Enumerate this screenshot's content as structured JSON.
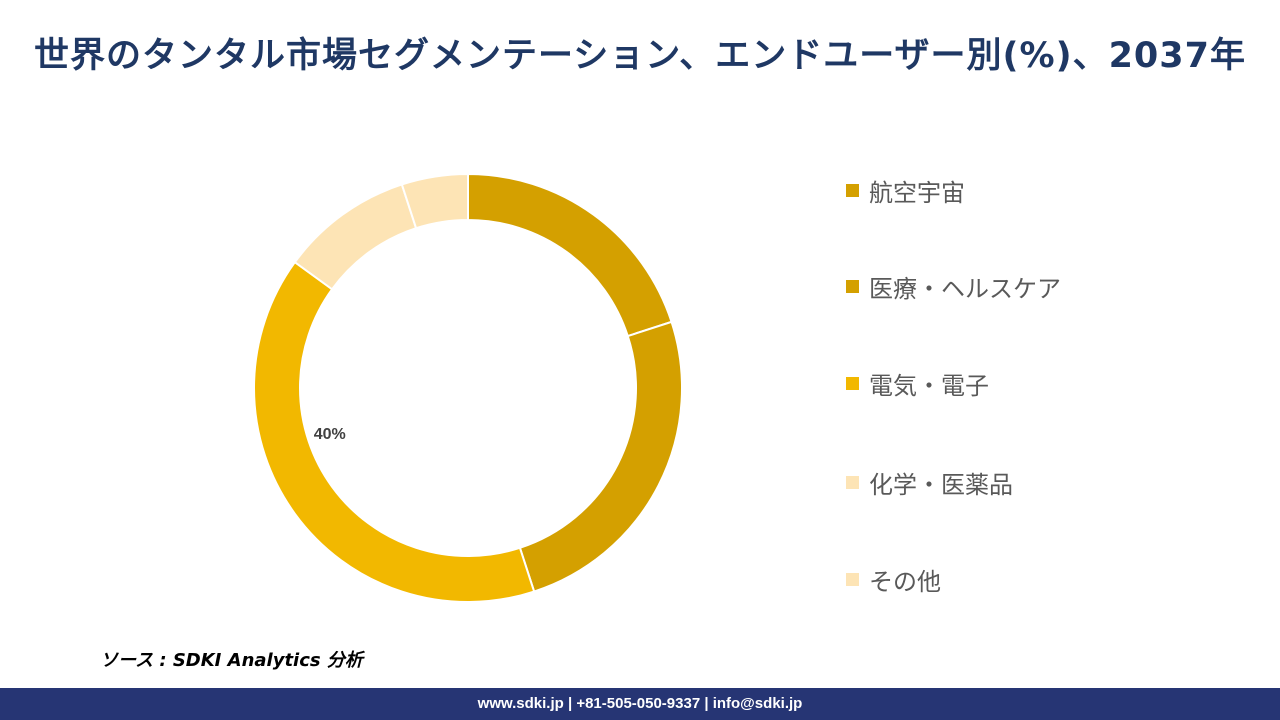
{
  "title": "世界のタンタル市場セグメンテーション、エンドユーザー別(%)、2037年",
  "chart_data": {
    "type": "donut",
    "title": "世界のタンタル市場セグメンテーション、エンドユーザー別(%)、2037年",
    "series": [
      {
        "name": "航空宇宙",
        "value": 20,
        "color": "#d4a000"
      },
      {
        "name": "医療・ヘルスケア",
        "value": 25,
        "color": "#d4a000"
      },
      {
        "name": "電気・電子",
        "value": 40,
        "color": "#f2b800",
        "label": "40%"
      },
      {
        "name": "化学・医薬品",
        "value": 10,
        "color": "#fde4b5"
      },
      {
        "name": "その他",
        "value": 5,
        "color": "#fde4b5"
      }
    ],
    "legend_position": "right"
  },
  "source": "ソース : SDKI Analytics 分析",
  "footer": "www.sdki.jp | +81-505-050-9337 | info@sdki.jp"
}
